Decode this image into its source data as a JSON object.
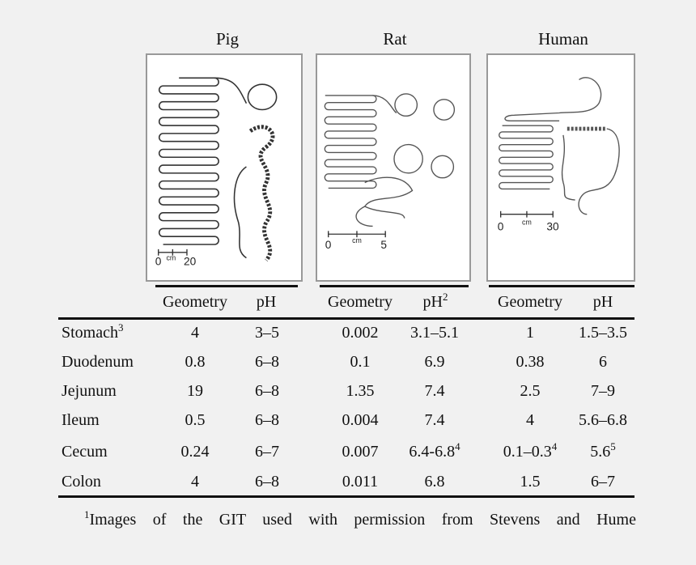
{
  "species": [
    "Pig",
    "Rat",
    "Human"
  ],
  "panels": [
    {
      "scale_start": "0",
      "scale_unit": "cm",
      "scale_end": "20"
    },
    {
      "scale_start": "0",
      "scale_unit": "cm",
      "scale_end": "5"
    },
    {
      "scale_start": "0",
      "scale_unit": "cm",
      "scale_end": "30"
    }
  ],
  "column_headers": [
    {
      "geometry": "Geometry",
      "ph": "pH",
      "ph_sup": ""
    },
    {
      "geometry": "Geometry",
      "ph": "pH",
      "ph_sup": "2"
    },
    {
      "geometry": "Geometry",
      "ph": "pH",
      "ph_sup": ""
    }
  ],
  "rows": [
    {
      "label": "Stomach",
      "label_sup": "3",
      "cells": [
        {
          "v": "4",
          "s": ""
        },
        {
          "v": "3–5",
          "s": ""
        },
        {
          "v": "0.002",
          "s": ""
        },
        {
          "v": "3.1–5.1",
          "s": ""
        },
        {
          "v": "1",
          "s": ""
        },
        {
          "v": "1.5–3.5",
          "s": ""
        }
      ]
    },
    {
      "label": "Duodenum",
      "label_sup": "",
      "cells": [
        {
          "v": "0.8",
          "s": ""
        },
        {
          "v": "6–8",
          "s": ""
        },
        {
          "v": "0.1",
          "s": ""
        },
        {
          "v": "6.9",
          "s": ""
        },
        {
          "v": "0.38",
          "s": ""
        },
        {
          "v": "6",
          "s": ""
        }
      ]
    },
    {
      "label": "Jejunum",
      "label_sup": "",
      "cells": [
        {
          "v": "19",
          "s": ""
        },
        {
          "v": "6–8",
          "s": ""
        },
        {
          "v": "1.35",
          "s": ""
        },
        {
          "v": "7.4",
          "s": ""
        },
        {
          "v": "2.5",
          "s": ""
        },
        {
          "v": "7–9",
          "s": ""
        }
      ]
    },
    {
      "label": "Ileum",
      "label_sup": "",
      "cells": [
        {
          "v": "0.5",
          "s": ""
        },
        {
          "v": "6–8",
          "s": ""
        },
        {
          "v": "0.004",
          "s": ""
        },
        {
          "v": "7.4",
          "s": ""
        },
        {
          "v": "4",
          "s": ""
        },
        {
          "v": "5.6–6.8",
          "s": ""
        }
      ]
    },
    {
      "label": "Cecum",
      "label_sup": "",
      "cells": [
        {
          "v": "0.24",
          "s": ""
        },
        {
          "v": "6–7",
          "s": ""
        },
        {
          "v": "0.007",
          "s": ""
        },
        {
          "v": "6.4-6.8",
          "s": "4"
        },
        {
          "v": "0.1–0.3",
          "s": "4"
        },
        {
          "v": "5.6",
          "s": "5"
        }
      ]
    },
    {
      "label": "Colon",
      "label_sup": "",
      "cells": [
        {
          "v": "4",
          "s": ""
        },
        {
          "v": "6–8",
          "s": ""
        },
        {
          "v": "0.011",
          "s": ""
        },
        {
          "v": "6.8",
          "s": ""
        },
        {
          "v": "1.5",
          "s": ""
        },
        {
          "v": "6–7",
          "s": ""
        }
      ]
    }
  ],
  "footnote": {
    "mark": "1",
    "text": "Images of the GIT used with permission from Stevens and Hume"
  }
}
